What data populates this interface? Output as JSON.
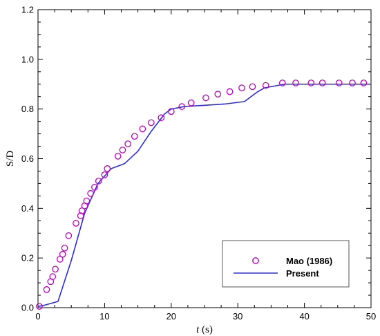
{
  "chart_data": {
    "type": "scatter",
    "xlabel_var": "t",
    "xlabel_unit": " (s)",
    "ylabel": "S/D",
    "xlim": [
      0,
      50
    ],
    "ylim": [
      0,
      1.2
    ],
    "xticks": [
      "0",
      "10",
      "20",
      "30",
      "40",
      "50"
    ],
    "yticks": [
      "0.0",
      "0.2",
      "0.4",
      "0.6",
      "0.8",
      "1.0",
      "1.2"
    ],
    "grid": false,
    "legend_position": "lower-right",
    "series": [
      {
        "name": "Mao (1986)",
        "style": "circles",
        "color": "#c000c0",
        "x": [
          0.2,
          1.3,
          1.9,
          2.2,
          2.6,
          3.3,
          3.7,
          4.0,
          4.6,
          5.7,
          6.4,
          6.6,
          7.0,
          7.3,
          7.9,
          8.5,
          9.1,
          10.0,
          10.4,
          12.0,
          12.7,
          13.5,
          14.5,
          15.7,
          17.0,
          18.5,
          20.0,
          21.6,
          23.0,
          25.2,
          27.0,
          28.8,
          30.6,
          32.2,
          34.2,
          36.7,
          38.7,
          41.0,
          42.7,
          45.2,
          47.2,
          48.9
        ],
        "y": [
          0.005,
          0.073,
          0.105,
          0.125,
          0.155,
          0.195,
          0.215,
          0.24,
          0.29,
          0.34,
          0.37,
          0.39,
          0.41,
          0.43,
          0.46,
          0.485,
          0.51,
          0.535,
          0.56,
          0.61,
          0.635,
          0.66,
          0.69,
          0.72,
          0.745,
          0.765,
          0.79,
          0.81,
          0.825,
          0.845,
          0.86,
          0.87,
          0.885,
          0.89,
          0.895,
          0.905,
          0.905,
          0.905,
          0.905,
          0.905,
          0.905,
          0.905
        ]
      },
      {
        "name": "Present",
        "style": "line",
        "color": "#2a2ae6",
        "x": [
          0,
          1,
          3,
          5,
          7,
          9,
          11,
          13,
          15,
          17,
          19,
          20,
          22,
          25,
          28,
          31,
          33,
          34,
          37,
          40,
          45,
          50
        ],
        "y": [
          0.005,
          0.01,
          0.025,
          0.19,
          0.38,
          0.5,
          0.56,
          0.58,
          0.63,
          0.71,
          0.78,
          0.8,
          0.81,
          0.815,
          0.82,
          0.83,
          0.87,
          0.885,
          0.9,
          0.9,
          0.9,
          0.9
        ]
      }
    ]
  }
}
